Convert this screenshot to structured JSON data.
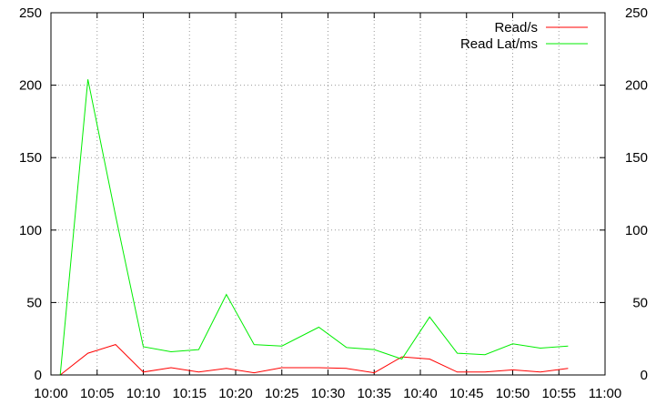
{
  "chart_data": {
    "type": "line",
    "x_ticks": [
      "10:00",
      "10:05",
      "10:10",
      "10:15",
      "10:20",
      "10:25",
      "10:30",
      "10:35",
      "10:40",
      "10:45",
      "10:50",
      "10:55",
      "11:00"
    ],
    "x_range": [
      "10:00",
      "11:00"
    ],
    "ylim": [
      0,
      250
    ],
    "y_ticks": [
      0,
      50,
      100,
      150,
      200,
      250
    ],
    "grid": true,
    "legend_position": "top-right",
    "series": [
      {
        "name": "Read/s",
        "color": "#ff0000",
        "x": [
          "10:01",
          "10:04",
          "10:07",
          "10:10",
          "10:13",
          "10:16",
          "10:19",
          "10:22",
          "10:25",
          "10:29",
          "10:32",
          "10:35",
          "10:38",
          "10:41",
          "10:44",
          "10:47",
          "10:50",
          "10:53",
          "10:56"
        ],
        "values": [
          0,
          15,
          21,
          2,
          5,
          2,
          4.5,
          1.5,
          5,
          5,
          4.5,
          1.5,
          12.5,
          11,
          2,
          2,
          3.5,
          2,
          4.5
        ]
      },
      {
        "name": "Read Lat/ms",
        "color": "#00ee00",
        "x": [
          "10:01",
          "10:04",
          "10:07",
          "10:10",
          "10:13",
          "10:16",
          "10:19",
          "10:22",
          "10:25",
          "10:29",
          "10:32",
          "10:35",
          "10:38",
          "10:41",
          "10:44",
          "10:47",
          "10:50",
          "10:53",
          "10:56"
        ],
        "values": [
          0,
          204,
          110,
          19.5,
          16,
          17.5,
          55.5,
          21,
          20,
          33,
          19,
          17.5,
          11,
          40,
          15,
          14,
          21.5,
          18.5,
          20
        ]
      }
    ]
  }
}
